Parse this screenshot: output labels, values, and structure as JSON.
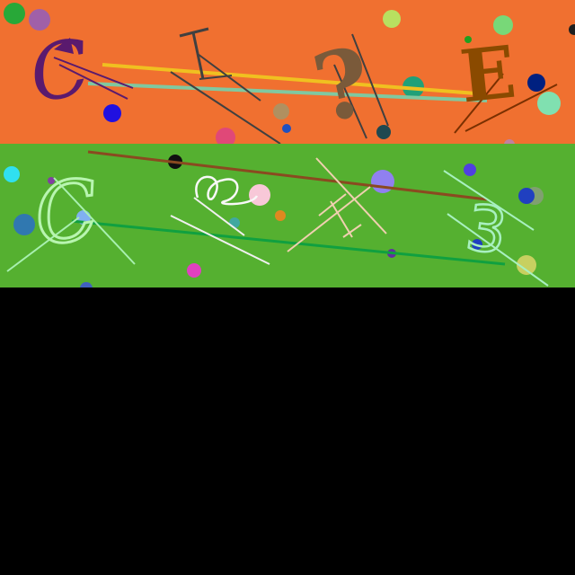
{
  "top_panel": {
    "background": "#f07030",
    "glyphs": [
      {
        "char": "C",
        "color": "#5a1a6e"
      },
      {
        "char": "?",
        "color": "#7a5a3a"
      },
      {
        "char": "E",
        "color": "#8a4a00"
      }
    ]
  },
  "bottom_panel": {
    "background": "#55b030",
    "glyphs": [
      {
        "char": "C",
        "color": "#b8f5b0"
      },
      {
        "char": "3",
        "color": "#a8f0c0"
      }
    ]
  },
  "background_fill": "#000000"
}
